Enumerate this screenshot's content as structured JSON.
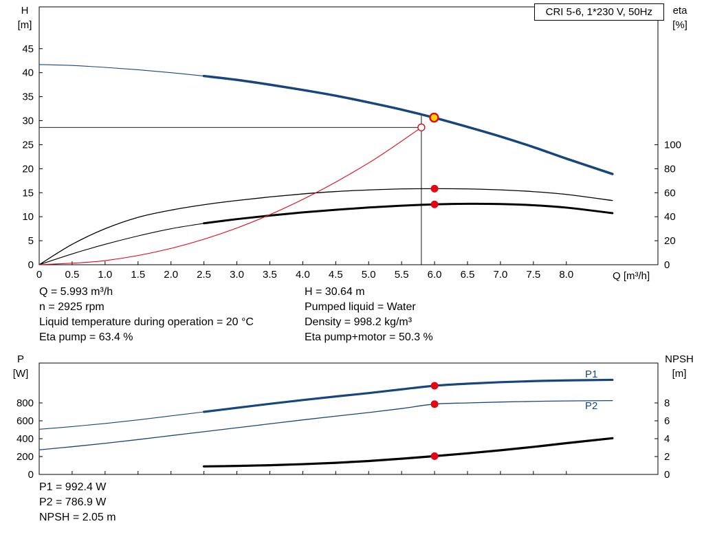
{
  "colors": {
    "blue": "#17457e",
    "red": "#e30613",
    "yellow": "#ffd500",
    "black": "#000000"
  },
  "info_top_left": [
    "Q = 5.993 m³/h",
    "n = 2925 rpm",
    "Liquid temperature during operation = 20 °C",
    "Eta pump = 63.4 %"
  ],
  "info_top_right": [
    "H = 30.64 m",
    "Pumped liquid = Water",
    "Density = 998.2 kg/m³",
    "Eta pump+motor = 50.3 %"
  ],
  "info_bottom": [
    "P1 = 992.4 W",
    "P2 = 786.9 W",
    "NPSH = 2.05 m"
  ],
  "chart_data": [
    {
      "id": "hq-eta-chart",
      "type": "line",
      "title": "CRI 5-6, 1*230 V, 50Hz",
      "x": {
        "label": "Q [m³/h]",
        "lim": [
          0,
          9.39
        ],
        "ticks": [
          "0",
          "0.5",
          "1.0",
          "1.5",
          "2.0",
          "2.5",
          "3.0",
          "3.5",
          "4.0",
          "4.5",
          "5.0",
          "5.5",
          "6.0",
          "6.5",
          "7.0",
          "7.5",
          "8.0"
        ]
      },
      "y_left": {
        "name": "H",
        "unit": "[m]",
        "lim": [
          0,
          53.7
        ],
        "ticks": [
          "0",
          "5",
          "10",
          "15",
          "20",
          "25",
          "30",
          "35",
          "40",
          "45"
        ]
      },
      "y_right": {
        "name": "eta",
        "unit": "[%]",
        "lim": [
          0,
          214.9
        ],
        "ticks": [
          "0",
          "20",
          "40",
          "60",
          "80",
          "100"
        ]
      },
      "series": [
        {
          "name": "head",
          "label": "H(Q)",
          "axis": "left",
          "color": "blue",
          "width": 3.5,
          "thin_until": 2.5,
          "x": [
            0,
            0.5,
            1,
            1.5,
            2,
            2.5,
            3,
            3.5,
            4,
            4.5,
            5,
            5.5,
            6,
            6.5,
            7,
            7.5,
            8,
            8.7
          ],
          "y": [
            41.7,
            41.5,
            41.1,
            40.6,
            40.0,
            39.3,
            38.5,
            37.5,
            36.4,
            35.2,
            33.8,
            32.3,
            30.6,
            28.7,
            26.7,
            24.5,
            22.1,
            18.9
          ]
        },
        {
          "name": "eta-pump",
          "label": "Eta pump",
          "axis": "right",
          "color": "black",
          "width": 1.3,
          "x": [
            0,
            0.5,
            1,
            1.5,
            2,
            2.5,
            3,
            3.5,
            4,
            4.5,
            5,
            5.5,
            6,
            6.5,
            7,
            7.5,
            8,
            8.7
          ],
          "y": [
            0,
            17,
            30,
            39.5,
            45.5,
            50,
            53.5,
            56.5,
            59,
            61,
            62.3,
            63.2,
            63.4,
            63.2,
            62.4,
            60.9,
            58.6,
            53.5
          ],
          "marker": {
            "q": 6,
            "style": "dot"
          }
        },
        {
          "name": "eta-pump-motor",
          "label": "Eta pump+motor",
          "axis": "right",
          "color": "black",
          "width": 3,
          "thin_until": 2.5,
          "x": [
            0,
            0.5,
            1,
            1.5,
            2,
            2.5,
            3,
            3.5,
            4,
            4.5,
            5,
            5.5,
            6,
            6.5,
            7,
            7.5,
            8,
            8.7
          ],
          "y": [
            0,
            9,
            17,
            24,
            30,
            34.5,
            38,
            41,
            43.6,
            45.8,
            47.7,
            49.2,
            50.3,
            50.8,
            50.6,
            49.6,
            47.6,
            43.0
          ],
          "marker": {
            "q": 6,
            "style": "dot"
          }
        },
        {
          "name": "system-curve",
          "label": "System curve",
          "axis": "left",
          "color": "red",
          "width": 1.1,
          "x": [
            0,
            1,
            2,
            3,
            4,
            5,
            5.8
          ],
          "y": [
            0,
            0.85,
            3.4,
            7.65,
            13.6,
            21.2,
            28.6
          ]
        }
      ],
      "annotations": {
        "operating_point": {
          "q": 5.993,
          "h": 30.64
        },
        "duty_request": {
          "q": 5.8,
          "h": 28.6
        },
        "guide_top_h": 31.0
      }
    },
    {
      "id": "power-npsh-chart",
      "type": "line",
      "title": "",
      "x": {
        "label": "",
        "lim": [
          0,
          9.39
        ],
        "show_labels": false,
        "ticks": [
          "0",
          "0.5",
          "1.0",
          "1.5",
          "2.0",
          "2.5",
          "3.0",
          "3.5",
          "4.0",
          "4.5",
          "5.0",
          "5.5",
          "6.0",
          "6.5",
          "7.0",
          "7.5",
          "8.0"
        ]
      },
      "y_left": {
        "name": "P",
        "unit": "[W]",
        "lim": [
          0,
          1246
        ],
        "ticks": [
          "0",
          "200",
          "400",
          "600",
          "800"
        ]
      },
      "y_right": {
        "name": "NPSH",
        "unit": "[m]",
        "lim": [
          0,
          12.46
        ],
        "ticks": [
          "0",
          "2",
          "4",
          "6",
          "8"
        ]
      },
      "series": [
        {
          "name": "p1",
          "label": "P1",
          "axis": "left",
          "color": "blue",
          "width": 3.2,
          "thin_until": 2.5,
          "x": [
            0,
            0.5,
            1,
            1.5,
            2,
            2.5,
            3,
            3.5,
            4,
            4.5,
            5,
            5.5,
            6,
            6.5,
            7,
            7.5,
            8,
            8.7
          ],
          "y": [
            505,
            535,
            570,
            610,
            655,
            700,
            745,
            790,
            832,
            872,
            910,
            952,
            992.4,
            1015,
            1032,
            1044,
            1052,
            1058
          ],
          "marker": {
            "q": 6,
            "style": "dot"
          }
        },
        {
          "name": "p2",
          "label": "P2",
          "axis": "left",
          "color": "blue",
          "width": 1.3,
          "x": [
            0,
            0.5,
            1,
            1.5,
            2,
            2.5,
            3,
            3.5,
            4,
            4.5,
            5,
            5.5,
            6,
            6.5,
            7,
            7.5,
            8,
            8.7
          ],
          "y": [
            275,
            310,
            348,
            390,
            434,
            478,
            522,
            566,
            610,
            652,
            692,
            737,
            786.9,
            800,
            810,
            817,
            822,
            826
          ],
          "marker": {
            "q": 6,
            "style": "dot"
          }
        },
        {
          "name": "npsh",
          "label": "NPSH",
          "axis": "right",
          "color": "black",
          "width": 3.2,
          "x": [
            2.5,
            3,
            3.5,
            4,
            4.5,
            5,
            5.5,
            6,
            6.5,
            7,
            7.5,
            8,
            8.7
          ],
          "y": [
            0.9,
            0.95,
            1.03,
            1.15,
            1.3,
            1.5,
            1.76,
            2.05,
            2.36,
            2.7,
            3.08,
            3.5,
            4.05
          ],
          "marker": {
            "q": 6,
            "style": "dot"
          }
        }
      ]
    }
  ]
}
